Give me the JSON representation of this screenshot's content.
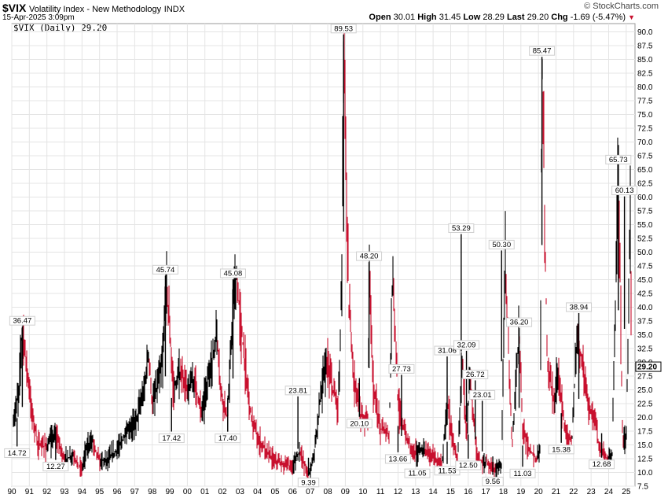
{
  "header": {
    "symbol": "$VIX",
    "name": "Volatility Index - New Methodology",
    "exchange": "INDX",
    "datetime": "15-Apr-2025 3:09pm",
    "brand": "© StockCharts.com",
    "legend": "$VIX (Daily) 29.20",
    "quote": {
      "open_label": "Open",
      "open": "30.01",
      "high_label": "High",
      "high": "31.45",
      "low_label": "Low",
      "low": "28.29",
      "last_label": "Last",
      "last": "29.20",
      "chg_label": "Chg",
      "chg": "-1.69 (-5.47%)",
      "down_arrow": "▼"
    }
  },
  "colors": {
    "up": "#000000",
    "down": "#c8102e",
    "grid": "#e4e4e4"
  },
  "chart_data": {
    "type": "line",
    "ylim": [
      7.5,
      91.5
    ],
    "yticks": [
      "7.5",
      "10.0",
      "12.5",
      "15.0",
      "17.5",
      "20.0",
      "22.5",
      "25.0",
      "27.5",
      "30.0",
      "32.5",
      "35.0",
      "37.5",
      "40.0",
      "42.5",
      "45.0",
      "47.5",
      "50.0",
      "52.5",
      "55.0",
      "57.5",
      "60.0",
      "62.5",
      "65.0",
      "67.5",
      "70.0",
      "72.5",
      "75.0",
      "77.5",
      "80.0",
      "82.5",
      "85.0",
      "87.5",
      "90.0"
    ],
    "xticks": [
      "90",
      "91",
      "92",
      "93",
      "94",
      "95",
      "96",
      "97",
      "98",
      "99",
      "00",
      "01",
      "02",
      "03",
      "04",
      "05",
      "06",
      "07",
      "08",
      "09",
      "10",
      "11",
      "12",
      "13",
      "14",
      "15",
      "16",
      "17",
      "18",
      "19",
      "20",
      "21",
      "22",
      "23",
      "24",
      "25"
    ],
    "last_value": "29.20",
    "series": [
      {
        "x": [
          1990.0,
          1990.4,
          1990.6,
          1990.9,
          1991.1,
          1991.5,
          1992.0,
          1992.5,
          1993.0,
          1993.5,
          1994.0,
          1994.2,
          1994.6,
          1995.0,
          1995.5,
          1996.0,
          1996.5,
          1997.0,
          1997.5,
          1997.8,
          1998.0,
          1998.6,
          1998.8,
          1999.2,
          1999.6,
          2000.0,
          2000.4,
          2000.8,
          2001.2,
          2001.7,
          2001.9,
          2002.3,
          2002.6,
          2002.8,
          2003.2,
          2003.6,
          2004.0,
          2004.5,
          2005.0,
          2005.5,
          2006.0,
          2006.4,
          2006.9,
          2007.2,
          2007.6,
          2007.9,
          2008.3,
          2008.6,
          2008.8,
          2008.9,
          2009.2,
          2009.5,
          2009.9,
          2010.3,
          2010.35,
          2010.6,
          2011.0,
          2011.5,
          2011.7,
          2012.0,
          2012.5,
          2013.0,
          2013.5,
          2014.0,
          2014.5,
          2014.8,
          2015.0,
          2015.4,
          2015.65,
          2015.9,
          2016.1,
          2016.5,
          2016.8,
          2017.0,
          2017.5,
          2017.9,
          2018.1,
          2018.5,
          2018.9,
          2019.1,
          2019.5,
          2019.9,
          2020.1,
          2020.2,
          2020.5,
          2020.9,
          2021.1,
          2021.5,
          2021.9,
          2022.2,
          2022.5,
          2022.9,
          2023.2,
          2023.5,
          2023.9,
          2024.2,
          2024.55,
          2024.8,
          2025.0,
          2025.25,
          2025.29
        ],
        "y": [
          17.0,
          25.0,
          36.47,
          28.0,
          22.0,
          15.0,
          14.72,
          17.0,
          12.27,
          13.0,
          10.5,
          14.0,
          16.0,
          12.0,
          12.5,
          14.0,
          17.0,
          19.0,
          24.0,
          32.0,
          22.0,
          30.0,
          45.74,
          25.0,
          28.0,
          25.0,
          27.0,
          21.0,
          27.0,
          35.0,
          25.0,
          20.0,
          40.0,
          45.08,
          32.0,
          21.0,
          16.0,
          14.0,
          12.0,
          11.5,
          11.0,
          14.0,
          9.39,
          13.0,
          24.0,
          30.0,
          25.0,
          22.0,
          45.0,
          89.53,
          40.0,
          27.0,
          20.1,
          20.0,
          48.2,
          25.0,
          18.0,
          17.0,
          48.0,
          22.0,
          16.0,
          13.66,
          14.0,
          13.0,
          11.05,
          23.0,
          18.0,
          12.5,
          31.06,
          18.0,
          26.72,
          13.0,
          11.53,
          12.0,
          10.5,
          11.0,
          50.3,
          14.0,
          36.2,
          18.0,
          14.0,
          12.5,
          15.0,
          85.47,
          30.0,
          23.0,
          28.0,
          18.0,
          15.38,
          35.0,
          30.0,
          22.0,
          20.0,
          14.0,
          12.68,
          13.0,
          65.73,
          16.0,
          16.0,
          60.13,
          29.2
        ]
      }
    ],
    "annotations": [
      {
        "label": "36.47",
        "x": 1990.6,
        "y": 36.47,
        "pos": "above"
      },
      {
        "label": "14.72",
        "x": 1990.3,
        "y": 14.72,
        "pos": "below"
      },
      {
        "label": "12.27",
        "x": 1992.5,
        "y": 12.27,
        "pos": "below"
      },
      {
        "label": "45.74",
        "x": 1998.75,
        "y": 45.74,
        "pos": "above"
      },
      {
        "label": "17.42",
        "x": 1999.1,
        "y": 17.42,
        "pos": "below"
      },
      {
        "label": "45.08",
        "x": 2002.6,
        "y": 45.08,
        "pos": "above"
      },
      {
        "label": "17.40",
        "x": 2002.3,
        "y": 17.4,
        "pos": "below"
      },
      {
        "label": "23.81",
        "x": 2006.3,
        "y": 23.81,
        "pos": "above"
      },
      {
        "label": "9.39",
        "x": 2006.9,
        "y": 9.39,
        "pos": "below"
      },
      {
        "label": "89.53",
        "x": 2008.9,
        "y": 89.53,
        "pos": "above"
      },
      {
        "label": "20.10",
        "x": 2009.8,
        "y": 20.1,
        "pos": "below"
      },
      {
        "label": "48.20",
        "x": 2010.35,
        "y": 48.2,
        "pos": "above"
      },
      {
        "label": "27.73",
        "x": 2012.2,
        "y": 27.73,
        "pos": "above"
      },
      {
        "label": "13.66",
        "x": 2012.0,
        "y": 13.66,
        "pos": "below"
      },
      {
        "label": "11.05",
        "x": 2013.1,
        "y": 11.05,
        "pos": "below"
      },
      {
        "label": "31.06",
        "x": 2014.8,
        "y": 31.06,
        "pos": "above"
      },
      {
        "label": "11.53",
        "x": 2014.8,
        "y": 11.53,
        "pos": "below"
      },
      {
        "label": "53.29",
        "x": 2015.6,
        "y": 53.29,
        "pos": "above"
      },
      {
        "label": "32.09",
        "x": 2015.9,
        "y": 32.09,
        "pos": "above"
      },
      {
        "label": "26.72",
        "x": 2016.4,
        "y": 26.72,
        "pos": "above"
      },
      {
        "label": "12.50",
        "x": 2016.0,
        "y": 12.5,
        "pos": "below"
      },
      {
        "label": "23.01",
        "x": 2016.8,
        "y": 23.01,
        "pos": "above"
      },
      {
        "label": "50.30",
        "x": 2017.9,
        "y": 50.3,
        "pos": "above"
      },
      {
        "label": "9.56",
        "x": 2017.4,
        "y": 9.56,
        "pos": "below"
      },
      {
        "label": "36.20",
        "x": 2018.9,
        "y": 36.2,
        "pos": "above"
      },
      {
        "label": "11.03",
        "x": 2019.1,
        "y": 11.03,
        "pos": "below"
      },
      {
        "label": "85.47",
        "x": 2020.2,
        "y": 85.47,
        "pos": "above"
      },
      {
        "label": "38.94",
        "x": 2022.3,
        "y": 38.94,
        "pos": "above"
      },
      {
        "label": "15.38",
        "x": 2021.3,
        "y": 15.38,
        "pos": "below"
      },
      {
        "label": "12.68",
        "x": 2023.6,
        "y": 12.68,
        "pos": "below"
      },
      {
        "label": "65.73",
        "x": 2024.55,
        "y": 65.73,
        "pos": "above"
      },
      {
        "label": "60.13",
        "x": 2024.9,
        "y": 60.13,
        "pos": "above"
      }
    ]
  }
}
